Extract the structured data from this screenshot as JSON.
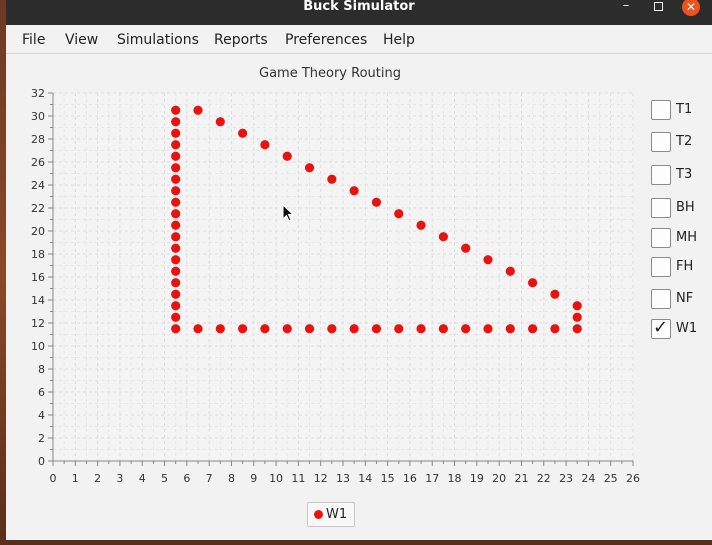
{
  "window": {
    "title": "Buck Simulator"
  },
  "menu": [
    "File",
    "View",
    "Simulations",
    "Reports",
    "Preferences",
    "Help"
  ],
  "toggles": [
    {
      "label": "T1",
      "checked": false
    },
    {
      "label": "T2",
      "checked": false
    },
    {
      "label": "T3",
      "checked": false
    },
    {
      "label": "BH",
      "checked": false
    },
    {
      "label": "MH",
      "checked": false
    },
    {
      "label": "FH",
      "checked": false
    },
    {
      "label": "NF",
      "checked": false
    },
    {
      "label": "W1",
      "checked": true
    }
  ],
  "check_glyph": "✓",
  "chart_data": {
    "type": "scatter",
    "title": "Game Theory Routing",
    "xlabel": "",
    "ylabel": "",
    "xlim": [
      0,
      26
    ],
    "ylim": [
      0,
      32
    ],
    "x_ticks": [
      0,
      1,
      2,
      3,
      4,
      5,
      6,
      7,
      8,
      9,
      10,
      11,
      12,
      13,
      14,
      15,
      16,
      17,
      18,
      19,
      20,
      21,
      22,
      23,
      24,
      25,
      26
    ],
    "y_ticks": [
      0,
      2,
      4,
      6,
      8,
      10,
      12,
      14,
      16,
      18,
      20,
      22,
      24,
      26,
      28,
      30,
      32
    ],
    "grid": true,
    "legend_placement": "bottom-center",
    "series": [
      {
        "name": "W1",
        "color": "#e8130e",
        "points": [
          [
            5.5,
            11.5
          ],
          [
            5.5,
            12.5
          ],
          [
            5.5,
            13.5
          ],
          [
            5.5,
            14.5
          ],
          [
            5.5,
            15.5
          ],
          [
            5.5,
            16.5
          ],
          [
            5.5,
            17.5
          ],
          [
            5.5,
            18.5
          ],
          [
            5.5,
            19.5
          ],
          [
            5.5,
            20.5
          ],
          [
            5.5,
            21.5
          ],
          [
            5.5,
            22.5
          ],
          [
            5.5,
            23.5
          ],
          [
            5.5,
            24.5
          ],
          [
            5.5,
            25.5
          ],
          [
            5.5,
            26.5
          ],
          [
            5.5,
            27.5
          ],
          [
            5.5,
            28.5
          ],
          [
            5.5,
            29.5
          ],
          [
            5.5,
            30.5
          ],
          [
            6.5,
            30.5
          ],
          [
            7.5,
            29.5
          ],
          [
            8.5,
            28.5
          ],
          [
            9.5,
            27.5
          ],
          [
            10.5,
            26.5
          ],
          [
            11.5,
            25.5
          ],
          [
            12.5,
            24.5
          ],
          [
            13.5,
            23.5
          ],
          [
            14.5,
            22.5
          ],
          [
            15.5,
            21.5
          ],
          [
            16.5,
            20.5
          ],
          [
            17.5,
            19.5
          ],
          [
            18.5,
            18.5
          ],
          [
            19.5,
            17.5
          ],
          [
            20.5,
            16.5
          ],
          [
            21.5,
            15.5
          ],
          [
            22.5,
            14.5
          ],
          [
            23.5,
            13.5
          ],
          [
            23.5,
            12.5
          ],
          [
            6.5,
            11.5
          ],
          [
            7.5,
            11.5
          ],
          [
            8.5,
            11.5
          ],
          [
            9.5,
            11.5
          ],
          [
            10.5,
            11.5
          ],
          [
            11.5,
            11.5
          ],
          [
            12.5,
            11.5
          ],
          [
            13.5,
            11.5
          ],
          [
            14.5,
            11.5
          ],
          [
            15.5,
            11.5
          ],
          [
            16.5,
            11.5
          ],
          [
            17.5,
            11.5
          ],
          [
            18.5,
            11.5
          ],
          [
            19.5,
            11.5
          ],
          [
            20.5,
            11.5
          ],
          [
            21.5,
            11.5
          ],
          [
            22.5,
            11.5
          ],
          [
            23.5,
            11.5
          ]
        ]
      }
    ]
  }
}
